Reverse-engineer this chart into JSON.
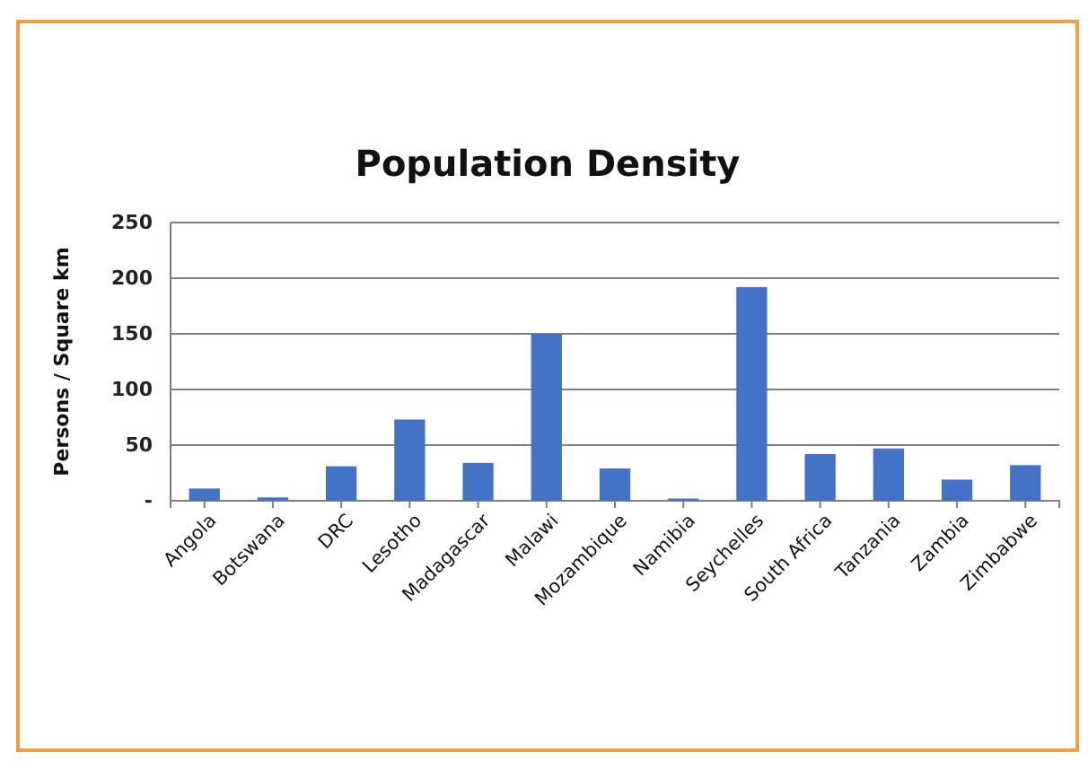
{
  "chart_data": {
    "type": "bar",
    "title": "Population Density",
    "ylabel": "Persons / Square km",
    "categories": [
      "Angola",
      "Botswana",
      "DRC",
      "Lesotho",
      "Madagascar",
      "Malawi",
      "Mozambique",
      "Namibia",
      "Seychelles",
      "South Africa",
      "Tanzania",
      "Zambia",
      "Zimbabwe"
    ],
    "values": [
      11,
      3,
      31,
      73,
      34,
      150,
      29,
      2,
      192,
      42,
      47,
      19,
      32
    ],
    "color": "#4472c4",
    "ylim": [
      0,
      250
    ],
    "yticks": [
      {
        "value": 0,
        "label": "-"
      },
      50,
      100,
      150,
      200,
      250
    ],
    "grid": "y"
  }
}
